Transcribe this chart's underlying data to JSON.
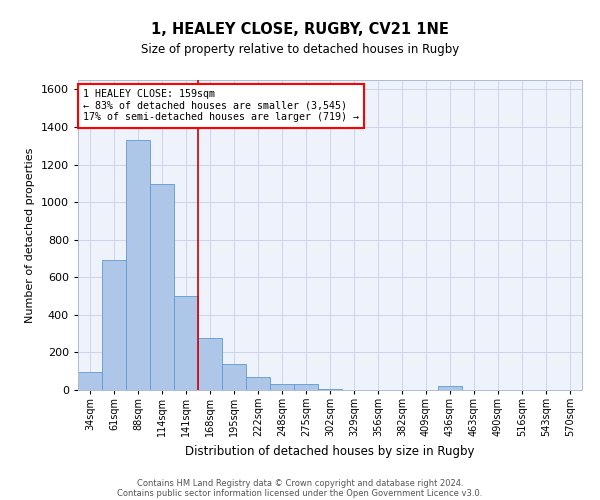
{
  "title_line1": "1, HEALEY CLOSE, RUGBY, CV21 1NE",
  "title_line2": "Size of property relative to detached houses in Rugby",
  "xlabel": "Distribution of detached houses by size in Rugby",
  "ylabel": "Number of detached properties",
  "categories": [
    "34sqm",
    "61sqm",
    "88sqm",
    "114sqm",
    "141sqm",
    "168sqm",
    "195sqm",
    "222sqm",
    "248sqm",
    "275sqm",
    "302sqm",
    "329sqm",
    "356sqm",
    "382sqm",
    "409sqm",
    "436sqm",
    "463sqm",
    "490sqm",
    "516sqm",
    "543sqm",
    "570sqm"
  ],
  "values": [
    95,
    690,
    1330,
    1095,
    500,
    275,
    140,
    70,
    30,
    30,
    5,
    0,
    0,
    0,
    0,
    20,
    0,
    0,
    0,
    0,
    0
  ],
  "bar_color": "#aec6e8",
  "bar_edge_color": "#5b9bd5",
  "red_line_x": 4.5,
  "annotation_text": "1 HEALEY CLOSE: 159sqm\n← 83% of detached houses are smaller (3,545)\n17% of semi-detached houses are larger (719) →",
  "annotation_box_color": "white",
  "annotation_box_edge_color": "red",
  "red_line_color": "#cc0000",
  "ylim": [
    0,
    1650
  ],
  "yticks": [
    0,
    200,
    400,
    600,
    800,
    1000,
    1200,
    1400,
    1600
  ],
  "footer_line1": "Contains HM Land Registry data © Crown copyright and database right 2024.",
  "footer_line2": "Contains public sector information licensed under the Open Government Licence v3.0.",
  "bg_color": "#eef2fb",
  "grid_color": "#c8d0e8"
}
